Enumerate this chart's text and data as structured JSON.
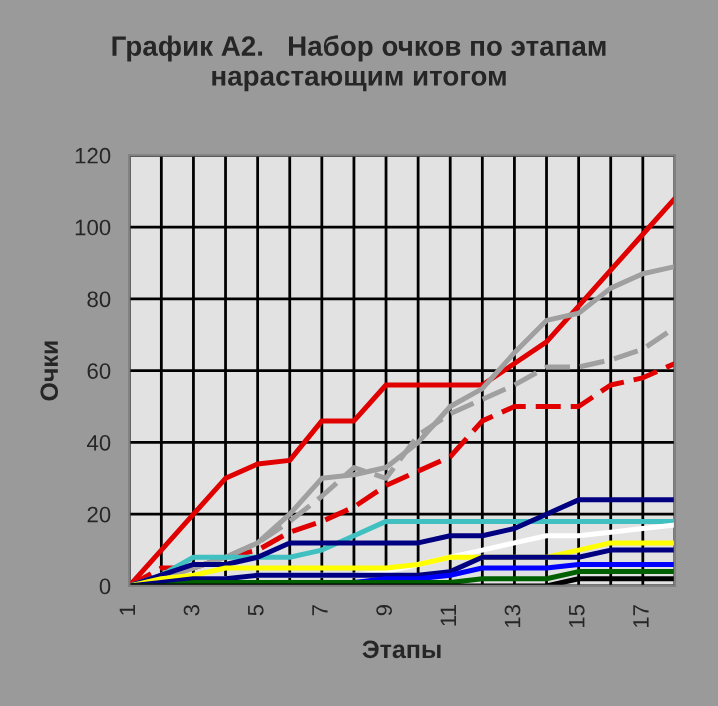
{
  "chart_data": {
    "type": "line",
    "title": "График А2.   Набор очков по этапам\nнарастающим итогом",
    "xlabel": "Этапы",
    "ylabel": "Очки",
    "categories": [
      "1",
      null,
      "3",
      null,
      "5",
      null,
      "7",
      null,
      "9",
      null,
      "11",
      null,
      "13",
      null,
      "15",
      null,
      "17",
      null
    ],
    "ylim": [
      0,
      120
    ],
    "yticks": [
      0,
      20,
      40,
      60,
      80,
      100,
      120
    ],
    "grid": true,
    "marker": "none",
    "line_style": "solid",
    "series": [
      {
        "color": "#e00000",
        "values": [
          0,
          10,
          20,
          30,
          34,
          35,
          46,
          46,
          56,
          56,
          56,
          56,
          62,
          68,
          78,
          88,
          98,
          108
        ]
      },
      {
        "color": "#e00000",
        "line_style": "dashed",
        "values": [
          0,
          5,
          5,
          8,
          10,
          15,
          18,
          22,
          28,
          32,
          36,
          46,
          50,
          50,
          50,
          56,
          58,
          62
        ]
      },
      {
        "color": "#a0a0a0",
        "values": [
          0,
          2,
          5,
          8,
          12,
          20,
          30,
          31,
          33,
          40,
          50,
          55,
          65,
          74,
          76,
          83,
          87,
          89
        ]
      },
      {
        "color": "#a0a0a0",
        "line_style": "dashed",
        "values": [
          0,
          2,
          5,
          8,
          12,
          18,
          25,
          33,
          30,
          42,
          48,
          52,
          56,
          61,
          61,
          63,
          66,
          72
        ]
      },
      {
        "color": "#40c0c0",
        "values": [
          0,
          3,
          8,
          8,
          8,
          8,
          10,
          14,
          18,
          18,
          18,
          18,
          18,
          18,
          18,
          18,
          18,
          18
        ]
      },
      {
        "color": "#000080",
        "values": [
          0,
          3,
          6,
          6,
          8,
          12,
          12,
          12,
          12,
          12,
          14,
          14,
          16,
          20,
          24,
          24,
          24,
          24
        ]
      },
      {
        "color": "#ffffff",
        "values": [
          0,
          1,
          2,
          2,
          3,
          3,
          3,
          3,
          4,
          6,
          8,
          10,
          12,
          14,
          14,
          15,
          16,
          17
        ]
      },
      {
        "color": "#ffff00",
        "values": [
          0,
          2,
          3,
          5,
          5,
          5,
          5,
          5,
          5,
          6,
          8,
          8,
          8,
          8,
          10,
          12,
          12,
          12
        ]
      },
      {
        "color": "#000080",
        "values": [
          0,
          1,
          2,
          2,
          3,
          3,
          3,
          3,
          3,
          3,
          4,
          8,
          8,
          8,
          8,
          10,
          10,
          10
        ]
      },
      {
        "color": "#0000ff",
        "values": [
          null,
          null,
          null,
          null,
          null,
          null,
          1,
          1,
          2,
          2,
          3,
          5,
          5,
          5,
          6,
          6,
          6,
          6
        ]
      },
      {
        "color": "#006000",
        "values": [
          0,
          0,
          1,
          1,
          1,
          1,
          1,
          1,
          1,
          1,
          1,
          2,
          2,
          2,
          4,
          4,
          4,
          4
        ]
      },
      {
        "color": "#000000",
        "values": [
          0,
          0,
          0,
          0,
          0,
          0,
          0,
          0,
          0,
          0,
          0,
          0,
          0,
          0,
          2,
          2,
          2,
          2
        ]
      }
    ]
  }
}
